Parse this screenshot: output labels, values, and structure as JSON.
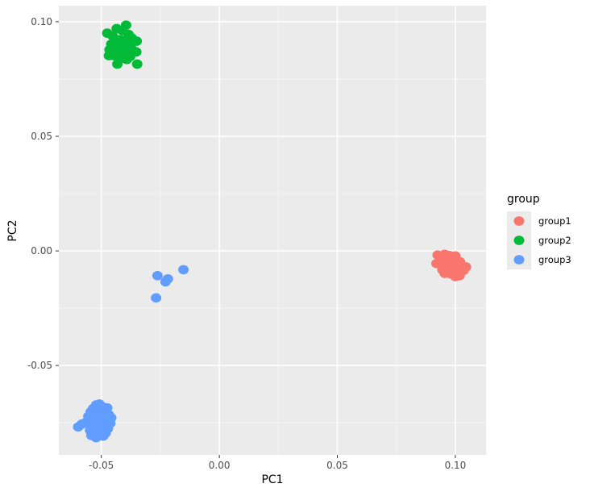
{
  "chart_data": {
    "type": "scatter",
    "xlabel": "PC1",
    "ylabel": "PC2",
    "xlim": [
      -0.068,
      0.113
    ],
    "ylim": [
      -0.089,
      0.107
    ],
    "x_ticks": [
      -0.05,
      0.0,
      0.05,
      0.1
    ],
    "x_tick_labels": [
      "-0.05",
      "0.00",
      "0.05",
      "0.10"
    ],
    "y_ticks": [
      -0.05,
      0.0,
      0.05,
      0.1
    ],
    "y_tick_labels": [
      "-0.05",
      "0.00",
      "0.05",
      "0.10"
    ],
    "grid": true,
    "legend": {
      "title": "group",
      "position": "right",
      "entries": [
        "group1",
        "group2",
        "group3"
      ]
    },
    "series": [
      {
        "name": "group1",
        "color": "#F8766D",
        "points": [
          [
            0.0925,
            -0.0018
          ],
          [
            0.0955,
            -0.0015
          ],
          [
            0.0975,
            -0.002
          ],
          [
            0.1,
            -0.0022
          ],
          [
            0.0935,
            -0.0045
          ],
          [
            0.095,
            -0.0038
          ],
          [
            0.097,
            -0.0035
          ],
          [
            0.0985,
            -0.004
          ],
          [
            0.1005,
            -0.0042
          ],
          [
            0.102,
            -0.0048
          ],
          [
            0.092,
            -0.0055
          ],
          [
            0.094,
            -0.006
          ],
          [
            0.096,
            -0.0058
          ],
          [
            0.0978,
            -0.0065
          ],
          [
            0.0995,
            -0.0068
          ],
          [
            0.1012,
            -0.006
          ],
          [
            0.103,
            -0.0068
          ],
          [
            0.1045,
            -0.007
          ],
          [
            0.0945,
            -0.0082
          ],
          [
            0.0965,
            -0.0085
          ],
          [
            0.099,
            -0.0088
          ],
          [
            0.1015,
            -0.009
          ],
          [
            0.1035,
            -0.0085
          ],
          [
            0.0955,
            -0.0098
          ],
          [
            0.098,
            -0.01
          ],
          [
            0.1,
            -0.0112
          ],
          [
            0.1018,
            -0.0108
          ],
          [
            0.0968,
            -0.0075
          ],
          [
            0.1008,
            -0.0078
          ],
          [
            0.0992,
            -0.0052
          ]
        ]
      },
      {
        "name": "group2",
        "color": "#00BA38",
        "points": [
          [
            -0.0395,
            0.0985
          ],
          [
            -0.0435,
            0.097
          ],
          [
            -0.0475,
            0.095
          ],
          [
            -0.0452,
            0.0938
          ],
          [
            -0.0412,
            0.0962
          ],
          [
            -0.0385,
            0.0945
          ],
          [
            -0.0372,
            0.093
          ],
          [
            -0.035,
            0.0915
          ],
          [
            -0.0445,
            0.0915
          ],
          [
            -0.042,
            0.0922
          ],
          [
            -0.0398,
            0.0908
          ],
          [
            -0.0458,
            0.0902
          ],
          [
            -0.0438,
            0.0885
          ],
          [
            -0.0412,
            0.0888
          ],
          [
            -0.0385,
            0.0892
          ],
          [
            -0.0365,
            0.0875
          ],
          [
            -0.0352,
            0.0868
          ],
          [
            -0.0465,
            0.0878
          ],
          [
            -0.0425,
            0.0865
          ],
          [
            -0.04,
            0.0858
          ],
          [
            -0.0378,
            0.0848
          ],
          [
            -0.0448,
            0.0852
          ],
          [
            -0.0415,
            0.084
          ],
          [
            -0.0392,
            0.0835
          ],
          [
            -0.0468,
            0.0852
          ],
          [
            -0.0432,
            0.0815
          ],
          [
            -0.0348,
            0.0815
          ],
          [
            -0.0405,
            0.0875
          ],
          [
            -0.043,
            0.0898
          ],
          [
            -0.0375,
            0.0905
          ]
        ]
      },
      {
        "name": "group3",
        "color": "#619CFF",
        "points": [
          [
            -0.0262,
            -0.0108
          ],
          [
            -0.0218,
            -0.0122
          ],
          [
            -0.0228,
            -0.0135
          ],
          [
            -0.0152,
            -0.0082
          ],
          [
            -0.0268,
            -0.0205
          ],
          [
            -0.0598,
            -0.0768
          ],
          [
            -0.0582,
            -0.0755
          ],
          [
            -0.0542,
            -0.0805
          ],
          [
            -0.0522,
            -0.0815
          ],
          [
            -0.0508,
            -0.0668
          ],
          [
            -0.0522,
            -0.0672
          ],
          [
            -0.0492,
            -0.0682
          ],
          [
            -0.0535,
            -0.0688
          ],
          [
            -0.0475,
            -0.0685
          ],
          [
            -0.0545,
            -0.0702
          ],
          [
            -0.0515,
            -0.0698
          ],
          [
            -0.0498,
            -0.0708
          ],
          [
            -0.0468,
            -0.0715
          ],
          [
            -0.0555,
            -0.0722
          ],
          [
            -0.0528,
            -0.0718
          ],
          [
            -0.0505,
            -0.0728
          ],
          [
            -0.0478,
            -0.0732
          ],
          [
            -0.0552,
            -0.0742
          ],
          [
            -0.0532,
            -0.0738
          ],
          [
            -0.0508,
            -0.0748
          ],
          [
            -0.0488,
            -0.0745
          ],
          [
            -0.0462,
            -0.0752
          ],
          [
            -0.0545,
            -0.0762
          ],
          [
            -0.0518,
            -0.0765
          ],
          [
            -0.0495,
            -0.0768
          ],
          [
            -0.0472,
            -0.0775
          ],
          [
            -0.0548,
            -0.0782
          ],
          [
            -0.0525,
            -0.0785
          ],
          [
            -0.0502,
            -0.0788
          ],
          [
            -0.0482,
            -0.0795
          ],
          [
            -0.0535,
            -0.0798
          ],
          [
            -0.0512,
            -0.0802
          ],
          [
            -0.0492,
            -0.0808
          ],
          [
            -0.0565,
            -0.0748
          ],
          [
            -0.0458,
            -0.0728
          ],
          [
            -0.0538,
            -0.0712
          ],
          [
            -0.0512,
            -0.0722
          ],
          [
            -0.0485,
            -0.0758
          ]
        ]
      }
    ]
  }
}
